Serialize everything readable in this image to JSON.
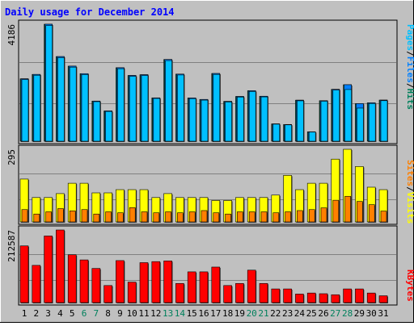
{
  "title": "Daily usage for December 2014",
  "colors": {
    "background": "#c0c0c0",
    "frame": "#000000",
    "title": "#0000ff",
    "pages": "#00c0ff",
    "files": "#0080ff",
    "hits": "#00805c",
    "visits": "#ffff00",
    "sites": "#ff8000",
    "kbytes": "#ff0000",
    "weekday_label": "#000000",
    "weekend_label": "#00805c"
  },
  "chart_data": [
    {
      "type": "bar",
      "panel": "hits",
      "tick_label": "4186",
      "ylim": [
        0,
        4186
      ],
      "legend": [
        "Pages",
        "Files",
        "Hits"
      ],
      "categories": [
        "1",
        "2",
        "3",
        "4",
        "5",
        "6",
        "7",
        "8",
        "9",
        "10",
        "11",
        "12",
        "13",
        "14",
        "15",
        "16",
        "17",
        "18",
        "19",
        "20",
        "21",
        "22",
        "23",
        "24",
        "25",
        "26",
        "27",
        "28",
        "29",
        "30",
        "31"
      ],
      "weekend_days": [
        "6",
        "7",
        "13",
        "14",
        "20",
        "21",
        "27",
        "28"
      ],
      "series": [
        {
          "name": "Hits",
          "values": [
            2233,
            2390,
            4186,
            3028,
            2686,
            2417,
            1436,
            1083,
            2630,
            2352,
            2379,
            1551,
            2924,
            2402,
            1548,
            1494,
            2423,
            1425,
            1601,
            1806,
            1609,
            620,
            598,
            1468,
            338,
            1450,
            1856,
            2021,
            1345,
            1374,
            1471
          ]
        },
        {
          "name": "Files",
          "values": [
            2233,
            2390,
            4186,
            3028,
            2686,
            2417,
            1436,
            1083,
            2630,
            2352,
            2379,
            1551,
            2924,
            2402,
            1548,
            1494,
            2423,
            1425,
            1601,
            1806,
            1609,
            620,
            598,
            1468,
            338,
            1450,
            1856,
            2021,
            1345,
            1374,
            1471
          ]
        },
        {
          "name": "Pages",
          "values": [
            2205,
            2360,
            4140,
            2990,
            2650,
            2385,
            1415,
            1065,
            2595,
            2320,
            2350,
            1530,
            2885,
            2370,
            1525,
            1470,
            2390,
            1405,
            1580,
            1780,
            1585,
            610,
            585,
            1445,
            330,
            1430,
            1830,
            1850,
            1185,
            1350,
            1450
          ]
        }
      ]
    },
    {
      "type": "bar",
      "panel": "visits",
      "tick_label": "295",
      "ylim": [
        0,
        295
      ],
      "legend": [
        "Sites",
        "Visits"
      ],
      "categories": [
        "1",
        "2",
        "3",
        "4",
        "5",
        "6",
        "7",
        "8",
        "9",
        "10",
        "11",
        "12",
        "13",
        "14",
        "15",
        "16",
        "17",
        "18",
        "19",
        "20",
        "21",
        "22",
        "23",
        "24",
        "25",
        "26",
        "27",
        "28",
        "29",
        "30",
        "31"
      ],
      "series": [
        {
          "name": "Visits",
          "values": [
            174,
            99,
            99,
            115,
            157,
            157,
            118,
            118,
            131,
            131,
            131,
            99,
            115,
            99,
            99,
            99,
            87,
            87,
            99,
            99,
            99,
            109,
            189,
            131,
            157,
            157,
            255,
            295,
            225,
            141,
            131
          ]
        },
        {
          "name": "Sites",
          "values": [
            50,
            32,
            41,
            54,
            45,
            50,
            32,
            41,
            37,
            58,
            41,
            37,
            41,
            37,
            41,
            46,
            37,
            32,
            41,
            41,
            41,
            37,
            41,
            46,
            50,
            57,
            88,
            104,
            83,
            70,
            44
          ]
        }
      ]
    },
    {
      "type": "bar",
      "panel": "kbytes",
      "tick_label": "212587",
      "ylim": [
        0,
        212587
      ],
      "legend": [
        "KBytes"
      ],
      "categories": [
        "1",
        "2",
        "3",
        "4",
        "5",
        "6",
        "7",
        "8",
        "9",
        "10",
        "11",
        "12",
        "13",
        "14",
        "15",
        "16",
        "17",
        "18",
        "19",
        "20",
        "21",
        "22",
        "23",
        "24",
        "25",
        "26",
        "27",
        "28",
        "29",
        "30",
        "31"
      ],
      "series": [
        {
          "name": "KBytes",
          "values": [
            166000,
            109000,
            195000,
            212587,
            140000,
            125000,
            100000,
            50000,
            123000,
            60000,
            117000,
            120000,
            122000,
            56000,
            90000,
            90000,
            104000,
            50000,
            56000,
            95000,
            56000,
            40000,
            40000,
            25000,
            28000,
            26000,
            23000,
            40000,
            40000,
            28000,
            20000
          ]
        }
      ]
    }
  ]
}
